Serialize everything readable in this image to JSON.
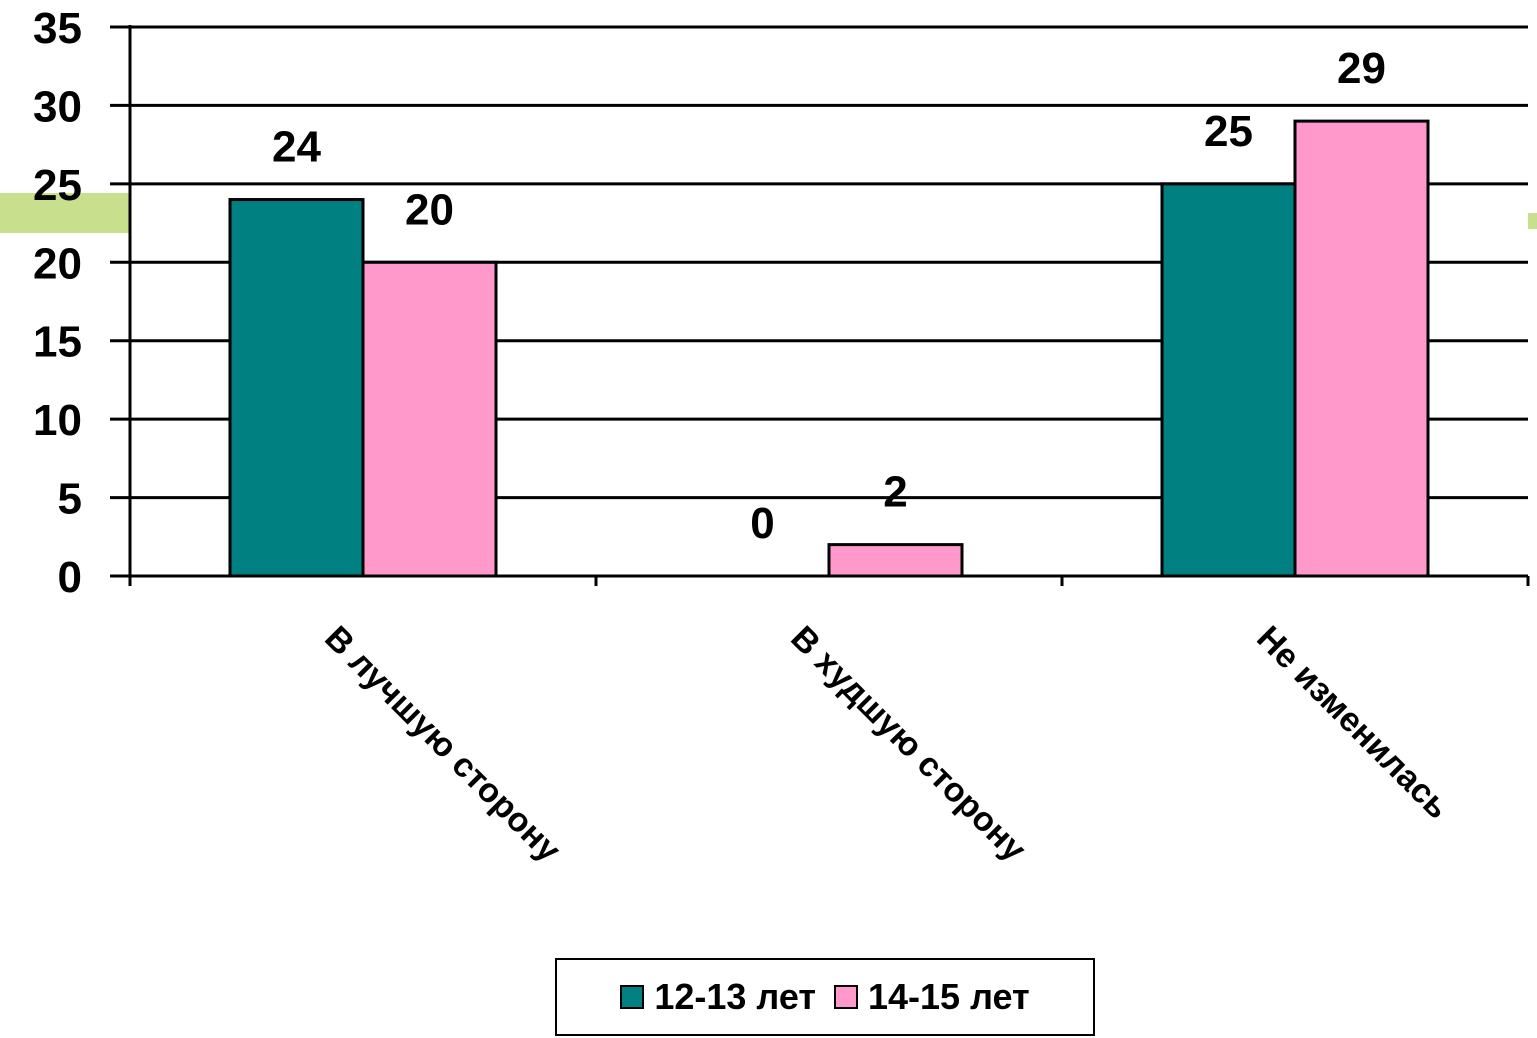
{
  "chart_data": {
    "type": "bar",
    "categories": [
      "В лучшую сторону",
      "В худшую сторону",
      "Не изменилась"
    ],
    "series": [
      {
        "name": "12-13 лет",
        "values": [
          24,
          0,
          25
        ],
        "color": "#008080"
      },
      {
        "name": "14-15 лет",
        "values": [
          20,
          2,
          29
        ],
        "color": "#ff99cc"
      }
    ],
    "ylim": [
      0,
      35
    ],
    "yticks": [
      0,
      5,
      10,
      15,
      20,
      25,
      30,
      35
    ],
    "grid": true,
    "legend": "bottom",
    "title": "",
    "xlabel": "",
    "ylabel": ""
  }
}
